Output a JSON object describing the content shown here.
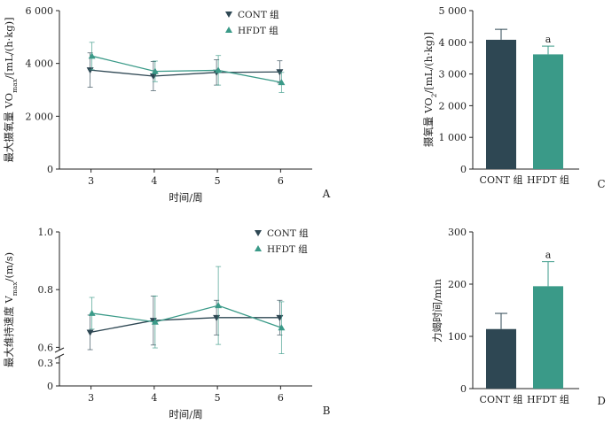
{
  "chart_data": [
    {
      "panel_label": "A",
      "type": "line",
      "x": [
        3,
        4,
        5,
        6
      ],
      "xlabel": "时间/周",
      "ylabel": "最大摄氧量 VO2max/[mL/(h·kg)]",
      "ylim": [
        0,
        6000
      ],
      "yticks": [
        "0",
        "2 000",
        "4 000",
        "6 000"
      ],
      "legend_position": "top-center",
      "series": [
        {
          "name": "CONT 组",
          "marker": "triangle-down",
          "color": "#2e4753",
          "values": [
            3750,
            3520,
            3660,
            3680
          ],
          "errors": [
            650,
            550,
            480,
            420
          ]
        },
        {
          "name": "HFDT 组",
          "marker": "triangle-up",
          "color": "#3a9a88",
          "values": [
            4280,
            3700,
            3740,
            3280
          ],
          "errors": [
            520,
            390,
            560,
            380
          ]
        }
      ]
    },
    {
      "panel_label": "B",
      "type": "line",
      "x": [
        3,
        4,
        5,
        6
      ],
      "xlabel": "时间/周",
      "ylabel": "最大维持速度 Vmax/(m/s)",
      "ylim_broken": [
        [
          0,
          0.3
        ],
        [
          0.5,
          1.0
        ]
      ],
      "yticks": [
        "0",
        "0.3",
        "0.6",
        "0.8",
        "1.0"
      ],
      "legend_position": "top-right",
      "series": [
        {
          "name": "CONT 组",
          "marker": "triangle-down",
          "color": "#2e4753",
          "values": [
            0.652,
            0.693,
            0.703,
            0.703
          ],
          "errors": [
            0.06,
            0.085,
            0.06,
            0.06
          ]
        },
        {
          "name": "HFDT 组",
          "marker": "triangle-up",
          "color": "#3a9a88",
          "values": [
            0.718,
            0.688,
            0.745,
            0.668
          ],
          "errors": [
            0.055,
            0.09,
            0.135,
            0.09
          ]
        }
      ]
    },
    {
      "panel_label": "C",
      "type": "bar",
      "categories": [
        "CONT 组",
        "HFDT 组"
      ],
      "values": [
        4080,
        3620
      ],
      "errors": [
        330,
        260
      ],
      "colors": [
        "#2e4753",
        "#3a9a88"
      ],
      "significance": [
        "",
        "a"
      ],
      "ylabel": "摄氧量 VO2/[mL/(h·kg)]",
      "ylim": [
        0,
        5000
      ],
      "yticks": [
        "0",
        "1 000",
        "2 000",
        "3 000",
        "4 000",
        "5 000"
      ]
    },
    {
      "panel_label": "D",
      "type": "bar",
      "categories": [
        "CONT 组",
        "HFDT 组"
      ],
      "values": [
        114,
        196
      ],
      "errors": [
        30,
        47
      ],
      "colors": [
        "#2e4753",
        "#3a9a88"
      ],
      "significance": [
        "",
        "a"
      ],
      "ylabel": "力竭时间/min",
      "ylim": [
        0,
        300
      ],
      "yticks": [
        "0",
        "100",
        "200",
        "300"
      ]
    }
  ]
}
